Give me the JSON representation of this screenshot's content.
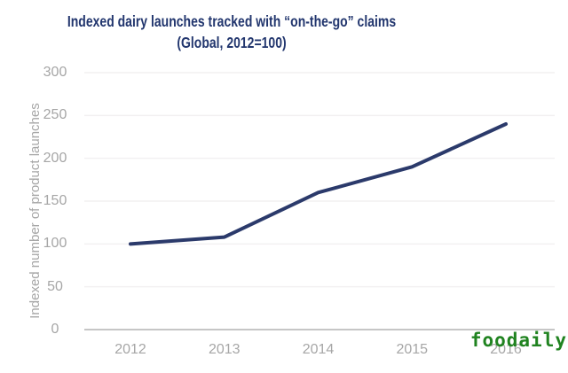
{
  "colors": {
    "title": "#22366e",
    "line": "#2b3a6b",
    "axis_text": "#a6a6a6",
    "grid": "#f2f0f1",
    "baseline": "#b3b3b3",
    "watermark_green": "#208320"
  },
  "watermark": {
    "label": "foodaily"
  },
  "chart_data": {
    "type": "line",
    "title": "Indexed dairy launches tracked with “on-the-go” claims",
    "subtitle": "(Global, 2012=100)",
    "xlabel": "",
    "ylabel": "Indexed number of product launches",
    "categories": [
      "2012",
      "2013",
      "2014",
      "2015",
      "2016"
    ],
    "values": [
      100,
      108,
      160,
      190,
      240
    ],
    "ylim": [
      0,
      300
    ],
    "yticks": [
      300,
      250,
      200,
      150,
      100,
      50,
      0
    ],
    "grid": "horizontal",
    "legend": "none"
  }
}
